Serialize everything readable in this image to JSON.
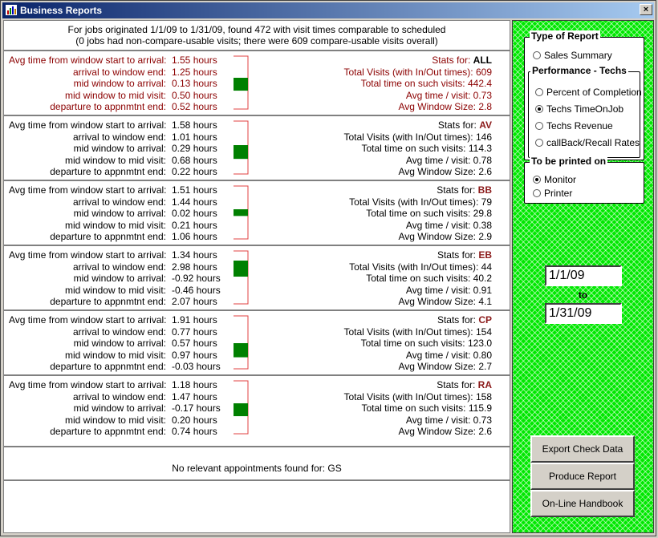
{
  "window": {
    "title": "Business Reports",
    "close_label": "×"
  },
  "header": {
    "line1": "For jobs originated 1/1/09 to 1/31/09, found 472 with visit times comparable to scheduled",
    "line2": "(0 jobs had non-compare-usable visits; there were 609 compare-usable visits overall)"
  },
  "labels": {
    "start_to_arrival": "Avg time from window start to arrival:",
    "arrival_to_end": "arrival to window end:",
    "mid_to_arrival": "mid window to arrival:",
    "mid_to_mid": "mid window to mid visit:",
    "departure_to_end": "departure to appnmtnt end:",
    "stats_for": "Stats for:",
    "total_visits": "Total Visits (with In/Out times):",
    "total_time": "Total time on such visits:",
    "avg_time": "Avg time / visit:",
    "avg_window": "Avg Window Size:"
  },
  "sections": [
    {
      "code": "ALL",
      "highlight": true,
      "values": [
        "1.55 hours",
        "1.25 hours",
        "0.13 hours",
        "0.50 hours",
        "0.52 hours"
      ],
      "stats": [
        "609",
        "442.4",
        "0.73",
        "2.8"
      ],
      "bar_offset": 0.13,
      "bar_height": 0.73
    },
    {
      "code": "AV",
      "highlight": false,
      "values": [
        "1.58 hours",
        "1.01 hours",
        "0.29 hours",
        "0.68 hours",
        "0.22 hours"
      ],
      "stats": [
        "146",
        "114.3",
        "0.78",
        "2.6"
      ],
      "bar_offset": 0.29,
      "bar_height": 0.78
    },
    {
      "code": "BB",
      "highlight": false,
      "values": [
        "1.51 hours",
        "1.44 hours",
        "0.02 hours",
        "0.21 hours",
        "1.06 hours"
      ],
      "stats": [
        "79",
        "29.8",
        "0.38",
        "2.9"
      ],
      "bar_offset": 0.02,
      "bar_height": 0.38
    },
    {
      "code": "EB",
      "highlight": false,
      "values": [
        "1.34 hours",
        "2.98 hours",
        "-0.92 hours",
        "-0.46 hours",
        "2.07 hours"
      ],
      "stats": [
        "44",
        "40.2",
        "0.91",
        "4.1"
      ],
      "bar_offset": -0.92,
      "bar_height": 0.91
    },
    {
      "code": "CP",
      "highlight": false,
      "values": [
        "1.91 hours",
        "0.77 hours",
        "0.57 hours",
        "0.97 hours",
        "-0.03 hours"
      ],
      "stats": [
        "154",
        "123.0",
        "0.80",
        "2.7"
      ],
      "bar_offset": 0.57,
      "bar_height": 0.8
    },
    {
      "code": "RA",
      "highlight": false,
      "values": [
        "1.18 hours",
        "1.47 hours",
        "-0.17 hours",
        "0.20 hours",
        "0.74 hours"
      ],
      "stats": [
        "158",
        "115.9",
        "0.73",
        "2.6"
      ],
      "bar_offset": -0.17,
      "bar_height": 0.73
    }
  ],
  "no_appointments": "No relevant appointments found for: GS",
  "sidebar": {
    "type_group_title": "Type of Report",
    "sales_summary": "Sales Summary",
    "perf_group_title": "Performance - Techs",
    "perf_options": [
      "Percent of Completion",
      "Techs TimeOnJob",
      "Techs Revenue",
      "callBack/Recall Rates"
    ],
    "perf_selected": 1,
    "print_group_title": "To be printed on",
    "print_options": [
      "Monitor",
      "Printer"
    ],
    "print_selected": 0,
    "date_from": "1/1/09",
    "date_to_label": "to",
    "date_to": "1/31/09",
    "buttons": [
      "Export Check Data",
      "Produce Report",
      "On-Line Handbook"
    ]
  },
  "colors": {
    "bar": "#008000",
    "box_outline": "#e04040",
    "sidebar_bg": "#00e800",
    "title_start": "#0a246a"
  }
}
